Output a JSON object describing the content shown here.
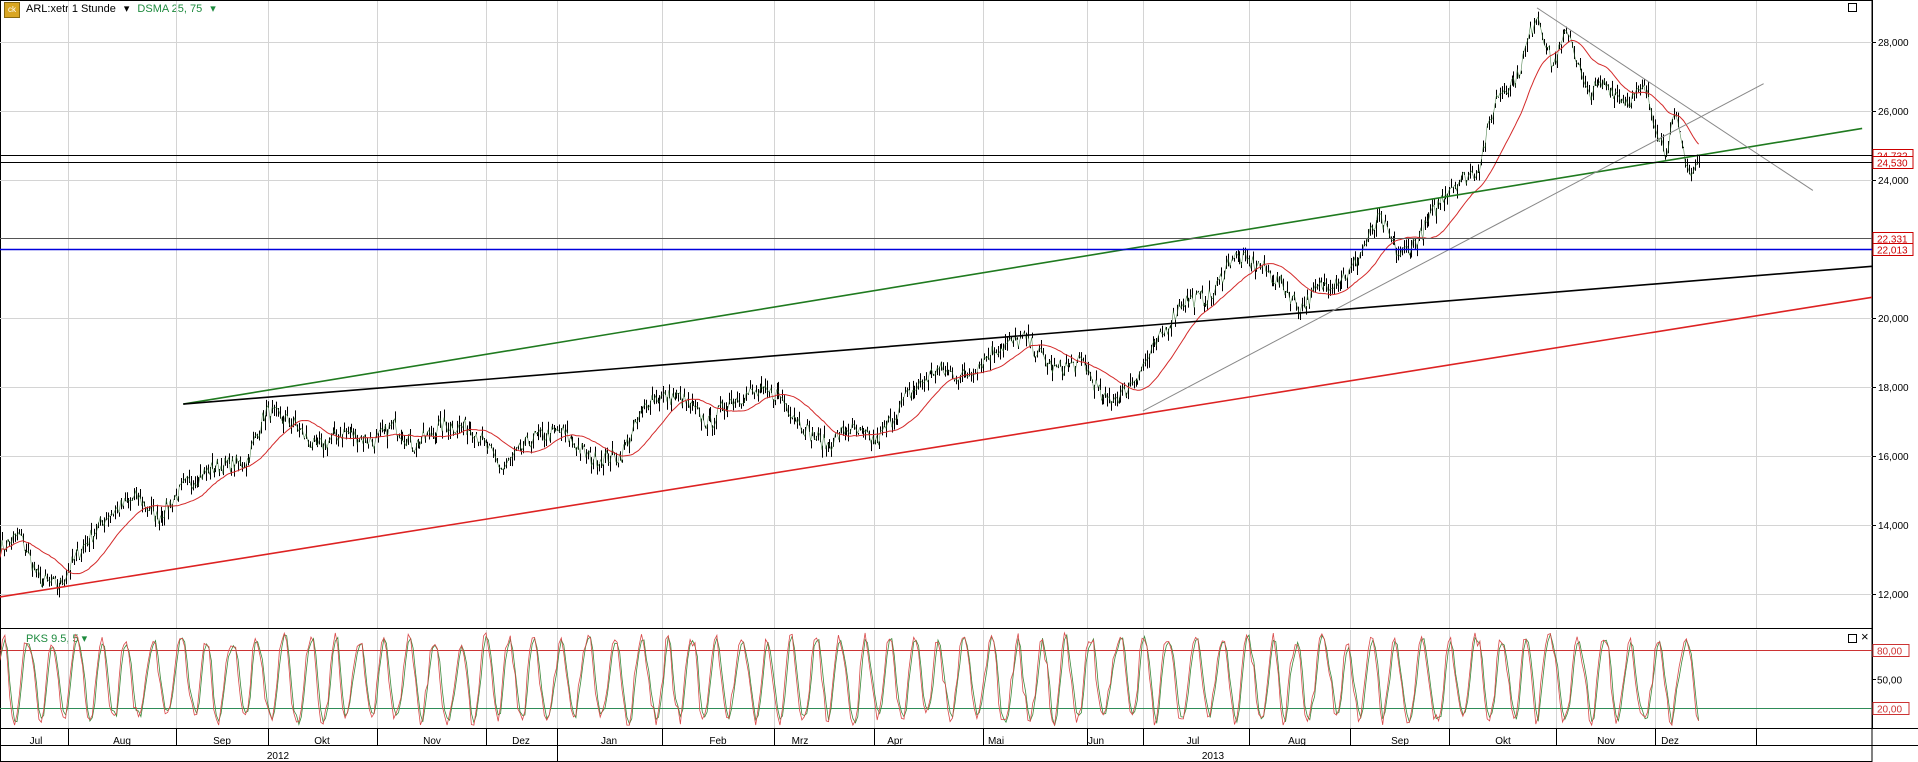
{
  "header": {
    "instrument": "ARL:xetr 1 Stunde",
    "indicator": "DSMA 25, 75"
  },
  "oscillator": {
    "label": "PKS 9.5, 5",
    "levels": [
      "80,00",
      "20,00"
    ],
    "axis_ticks": [
      "80,00",
      "50,00",
      "20,00"
    ]
  },
  "chart_data": [
    {
      "type": "line",
      "subtype": "candlestick",
      "ylim": [
        11000,
        29200
      ],
      "y_ticks": [
        "12,000",
        "14,000",
        "16,000",
        "18,000",
        "20,000",
        "22,000",
        "24,000",
        "26,000",
        "28,000"
      ],
      "y_tick_values": [
        12000,
        14000,
        16000,
        18000,
        20000,
        22000,
        24000,
        26000,
        28000
      ],
      "x_month_labels": [
        "Jul",
        "Aug",
        "Sep",
        "Okt",
        "Nov",
        "Dez",
        "Jan",
        "Feb",
        "Mrz",
        "Apr",
        "Mai",
        "Jun",
        "Jul",
        "Aug",
        "Sep",
        "Okt",
        "Nov",
        "Dez"
      ],
      "x_year_labels": [
        "2012",
        "2013"
      ],
      "price_keypoints": [
        {
          "t": 0.0,
          "v": 13300
        },
        {
          "t": 1.0,
          "v": 13700
        },
        {
          "t": 2.0,
          "v": 12400
        },
        {
          "t": 3.0,
          "v": 12200
        },
        {
          "t": 4.0,
          "v": 13200
        },
        {
          "t": 5.5,
          "v": 14300
        },
        {
          "t": 7.0,
          "v": 14800
        },
        {
          "t": 8.0,
          "v": 14200
        },
        {
          "t": 9.5,
          "v": 15200
        },
        {
          "t": 11.0,
          "v": 15700
        },
        {
          "t": 12.5,
          "v": 15800
        },
        {
          "t": 13.5,
          "v": 17300
        },
        {
          "t": 15.0,
          "v": 16900
        },
        {
          "t": 16.0,
          "v": 16200
        },
        {
          "t": 17.5,
          "v": 16700
        },
        {
          "t": 19.0,
          "v": 16400
        },
        {
          "t": 20.0,
          "v": 16900
        },
        {
          "t": 21.0,
          "v": 16300
        },
        {
          "t": 22.5,
          "v": 16900
        },
        {
          "t": 24.0,
          "v": 16800
        },
        {
          "t": 25.5,
          "v": 15600
        },
        {
          "t": 27.0,
          "v": 16500
        },
        {
          "t": 28.5,
          "v": 16700
        },
        {
          "t": 30.0,
          "v": 15900
        },
        {
          "t": 31.5,
          "v": 16000
        },
        {
          "t": 33.0,
          "v": 17700
        },
        {
          "t": 34.5,
          "v": 17700
        },
        {
          "t": 36.0,
          "v": 16900
        },
        {
          "t": 37.0,
          "v": 17600
        },
        {
          "t": 38.0,
          "v": 17800
        },
        {
          "t": 39.5,
          "v": 17800
        },
        {
          "t": 41.0,
          "v": 16700
        },
        {
          "t": 42.0,
          "v": 16300
        },
        {
          "t": 43.0,
          "v": 16800
        },
        {
          "t": 44.5,
          "v": 16400
        },
        {
          "t": 46.0,
          "v": 17700
        },
        {
          "t": 47.5,
          "v": 18500
        },
        {
          "t": 49.0,
          "v": 18300
        },
        {
          "t": 50.5,
          "v": 19100
        },
        {
          "t": 52.0,
          "v": 19400
        },
        {
          "t": 53.5,
          "v": 18500
        },
        {
          "t": 55.0,
          "v": 18700
        },
        {
          "t": 56.0,
          "v": 17600
        },
        {
          "t": 57.0,
          "v": 17800
        },
        {
          "t": 58.0,
          "v": 18600
        },
        {
          "t": 59.0,
          "v": 19500
        },
        {
          "t": 60.0,
          "v": 20500
        },
        {
          "t": 61.5,
          "v": 20600
        },
        {
          "t": 62.5,
          "v": 21800
        },
        {
          "t": 64.0,
          "v": 21500
        },
        {
          "t": 65.0,
          "v": 21000
        },
        {
          "t": 66.0,
          "v": 20300
        },
        {
          "t": 67.0,
          "v": 20900
        },
        {
          "t": 68.5,
          "v": 21300
        },
        {
          "t": 70.0,
          "v": 22900
        },
        {
          "t": 71.0,
          "v": 21800
        },
        {
          "t": 72.0,
          "v": 22300
        },
        {
          "t": 73.5,
          "v": 23800
        },
        {
          "t": 75.0,
          "v": 24300
        },
        {
          "t": 76.0,
          "v": 26500
        },
        {
          "t": 77.0,
          "v": 27000
        },
        {
          "t": 78.0,
          "v": 28900
        },
        {
          "t": 78.8,
          "v": 27300
        },
        {
          "t": 79.6,
          "v": 28400
        },
        {
          "t": 80.5,
          "v": 26500
        },
        {
          "t": 81.5,
          "v": 26800
        },
        {
          "t": 82.5,
          "v": 26300
        },
        {
          "t": 83.5,
          "v": 26600
        },
        {
          "t": 84.5,
          "v": 24800
        },
        {
          "t": 85.0,
          "v": 25800
        },
        {
          "t": 85.8,
          "v": 24100
        },
        {
          "t": 86.2,
          "v": 24500
        }
      ],
      "horizontal_lines": [
        {
          "value": 24732,
          "label": "24,732",
          "color": "#000000",
          "label_color": "#cc0000"
        },
        {
          "value": 24530,
          "label": "24,530",
          "color": "#000000",
          "label_color": "#cc0000"
        },
        {
          "value": 22331,
          "label": "22,331",
          "color": "#555555",
          "label_color": "#cc0000"
        },
        {
          "value": 22013,
          "label": "22,013",
          "color": "#0000dd",
          "label_color": "#cc0000"
        }
      ],
      "trend_lines": [
        {
          "color": "#1f7a1f",
          "from": [
            9.3,
            17500
          ],
          "to": [
            94.5,
            25500
          ]
        },
        {
          "color": "#000000",
          "from": [
            9.3,
            17500
          ],
          "to": [
            95.0,
            21500
          ]
        },
        {
          "color": "#dd2222",
          "from": [
            0.0,
            11900
          ],
          "to": [
            95.0,
            20600
          ]
        },
        {
          "color": "#888888",
          "from": [
            58.0,
            17300
          ],
          "to": [
            89.5,
            26800
          ]
        },
        {
          "color": "#888888",
          "from": [
            78.0,
            29000
          ],
          "to": [
            92.0,
            23700
          ]
        }
      ],
      "series": [
        {
          "values_key": "price_keypoints",
          "color": "#000000"
        },
        {
          "values_key": "price_keypoints",
          "color": "#d42a2a"
        }
      ]
    },
    {
      "type": "line",
      "ylim": [
        0,
        100
      ],
      "levels": [
        80,
        20
      ],
      "series": [
        {
          "color": "#d94a4a"
        },
        {
          "color": "#3a8a3a"
        }
      ]
    }
  ]
}
